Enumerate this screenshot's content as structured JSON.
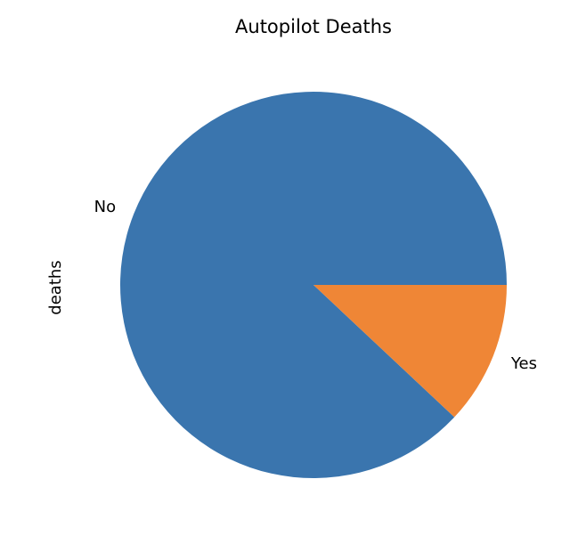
{
  "chart_data": {
    "type": "pie",
    "title": "Autopilot Deaths",
    "ylabel": "deaths",
    "xlabel": "",
    "categories": [
      "No",
      "Yes"
    ],
    "values": [
      88,
      12
    ],
    "colors": [
      "#3a75ae",
      "#ef8636"
    ],
    "start_angle_deg": 0,
    "direction": "counterclockwise",
    "legend": "none"
  }
}
